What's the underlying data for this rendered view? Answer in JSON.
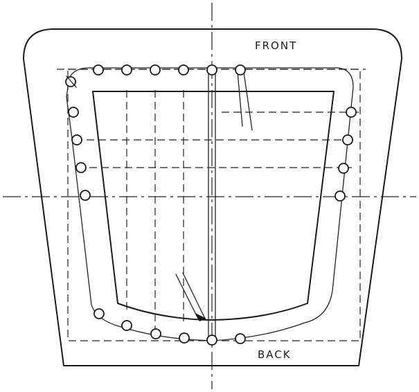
{
  "labels": {
    "front": "FRONT",
    "back": "BACK"
  },
  "colors": {
    "ink": "#1a1a1a",
    "paper": "#ffffff"
  }
}
